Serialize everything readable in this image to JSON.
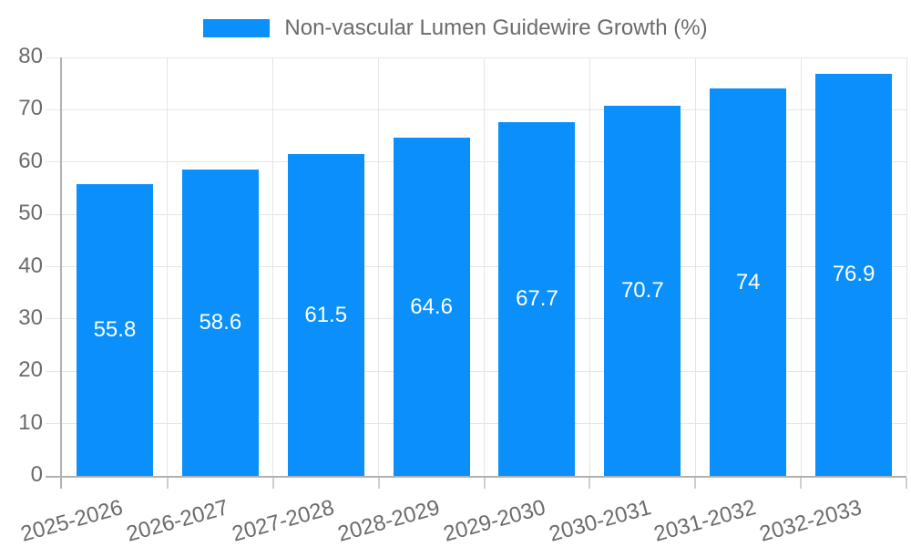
{
  "legend": {
    "label": "Non-vascular Lumen Guidewire Growth (%)"
  },
  "chart_data": {
    "type": "bar",
    "title": "Non-vascular Lumen Guidewire Growth (%)",
    "series_name": "Non-vascular Lumen Guidewire Growth (%)",
    "categories": [
      "2025-2026",
      "2026-2027",
      "2027-2028",
      "2028-2029",
      "2029-2030",
      "2030-2031",
      "2031-2032",
      "2032-2033"
    ],
    "values": [
      55.8,
      58.6,
      61.5,
      64.6,
      67.7,
      70.7,
      74,
      76.9
    ],
    "bar_labels": [
      "55.8",
      "58.6",
      "61.5",
      "64.6",
      "67.7",
      "70.7",
      "74",
      "76.9"
    ],
    "xlabel": "",
    "ylabel": "",
    "ylim": [
      0,
      80
    ],
    "ytick_step": 10,
    "yticks": [
      0,
      10,
      20,
      30,
      40,
      50,
      60,
      70,
      80
    ],
    "grid": true,
    "legend_position": "top",
    "x_label_rotation_deg": -15.5,
    "colors": {
      "bar": "#0a8ffb",
      "bar_label_text": "#ffffff",
      "text": "#6b6b6b",
      "grid": "#e6e6e6",
      "axis": "#b1b1b1",
      "tick": "#cfcfcf",
      "background": "#ffffff"
    }
  }
}
